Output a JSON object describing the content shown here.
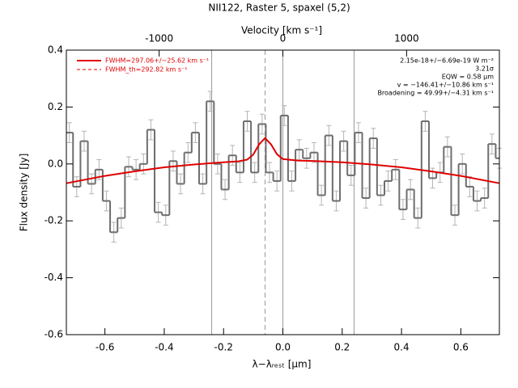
{
  "chart_data": {
    "type": "histogram-step",
    "title": "NII122, Raster 5, spaxel (5,2)",
    "x_label": "λ−λᵣₑₛₜ [μm]",
    "y_label": "Flux density [Jy]",
    "x2_label": "Velocity [km s⁻¹]",
    "xlim": [
      -0.73,
      0.73
    ],
    "xticks": [
      -0.6,
      -0.4,
      -0.2,
      {
        "value": 0,
        "label": "0.0"
      },
      0.2,
      0.4,
      0.6
    ],
    "ylim": [
      -0.6,
      0.4
    ],
    "yticks": [
      -0.6,
      -0.4,
      -0.2,
      {
        "value": 0,
        "label": "0.0"
      },
      0.2,
      0.4
    ],
    "x2lim": [
      -1750,
      1750
    ],
    "x2ticks": [
      -1000,
      0,
      1000
    ],
    "x": [
      -0.72,
      -0.695,
      -0.67,
      -0.645,
      -0.62,
      -0.595,
      -0.57,
      -0.545,
      -0.52,
      -0.495,
      -0.47,
      -0.445,
      -0.42,
      -0.395,
      -0.37,
      -0.345,
      -0.32,
      -0.295,
      -0.27,
      -0.245,
      -0.22,
      -0.195,
      -0.17,
      -0.145,
      -0.12,
      -0.095,
      -0.07,
      -0.045,
      -0.02,
      0.005,
      0.03,
      0.055,
      0.08,
      0.105,
      0.13,
      0.155,
      0.18,
      0.205,
      0.23,
      0.255,
      0.28,
      0.305,
      0.33,
      0.355,
      0.38,
      0.405,
      0.43,
      0.455,
      0.48,
      0.505,
      0.53,
      0.555,
      0.58,
      0.605,
      0.63,
      0.655,
      0.68,
      0.705,
      0.73
    ],
    "values": [
      0.11,
      -0.08,
      0.08,
      -0.07,
      -0.02,
      -0.13,
      -0.24,
      -0.19,
      -0.01,
      -0.02,
      0.0,
      0.12,
      -0.17,
      -0.18,
      0.01,
      -0.07,
      0.04,
      0.11,
      -0.07,
      0.22,
      0.0,
      -0.09,
      0.03,
      -0.03,
      0.15,
      -0.03,
      0.14,
      -0.03,
      -0.06,
      0.17,
      -0.06,
      0.05,
      0.02,
      0.04,
      -0.11,
      0.1,
      -0.13,
      0.08,
      -0.04,
      0.11,
      -0.12,
      0.09,
      -0.11,
      -0.06,
      -0.02,
      -0.16,
      -0.09,
      -0.19,
      0.15,
      -0.05,
      -0.03,
      0.06,
      -0.18,
      0.0,
      -0.08,
      -0.13,
      -0.12,
      0.07,
      0.02
    ],
    "error": 0.035,
    "color": "#6e6e6e",
    "error_color": "#b4b4b4",
    "fit": {
      "name": "FWHM=297.06+/−25.62 km s⁻¹",
      "color": "#e00000",
      "x": [
        -0.73,
        -0.6,
        -0.5,
        -0.4,
        -0.3,
        -0.2,
        -0.15,
        -0.12,
        -0.1,
        -0.08,
        -0.06,
        -0.04,
        -0.02,
        0.0,
        0.05,
        0.1,
        0.2,
        0.3,
        0.4,
        0.5,
        0.6,
        0.73
      ],
      "values": [
        -0.068,
        -0.042,
        -0.026,
        -0.012,
        -0.002,
        0.006,
        0.009,
        0.015,
        0.033,
        0.069,
        0.091,
        0.069,
        0.034,
        0.017,
        0.012,
        0.0105,
        0.006,
        -0.002,
        -0.012,
        -0.026,
        -0.042,
        -0.068
      ]
    },
    "fit_th_name": "FWHM_th=292.82 km s⁻¹",
    "vlines": [
      -0.24,
      0.0,
      0.24
    ],
    "vline_dashed": -0.06,
    "annotations": [
      "2.15e-18+/−6.69e-19 W m⁻²",
      "3.21σ",
      "EQW = 0.58 μm",
      "v = −146.41+/−10.86 km s⁻¹",
      "Broadening = 49.99+/−4.31 km s⁻¹"
    ]
  }
}
